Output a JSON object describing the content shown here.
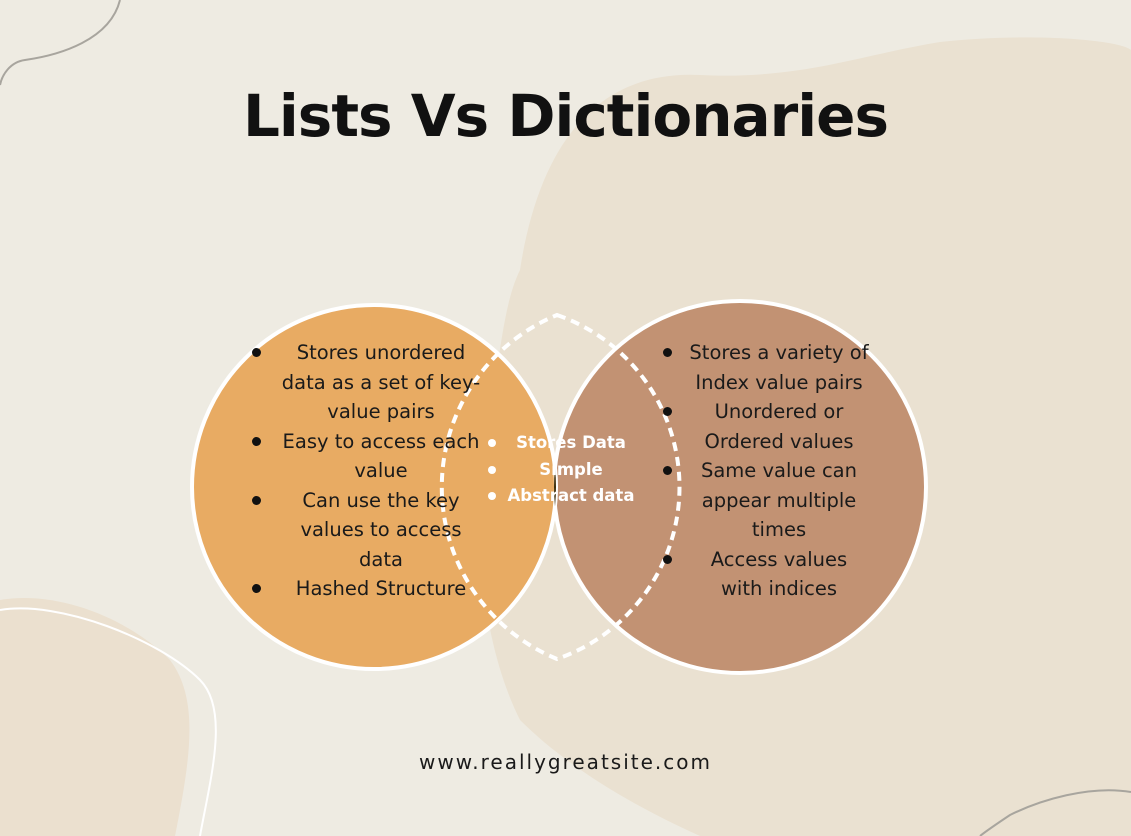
{
  "title": "Lists Vs Dictionaries",
  "colors": {
    "background": "#eeebe2",
    "blob": "#eae1d1",
    "left_circle": "#e8ab63",
    "right_circle": "#c29273",
    "intersection": "#40300c"
  },
  "left_items": [
    "Stores unordered data as a set of key-value pairs",
    "Easy to access each value",
    "Can use the key values to access data",
    "Hashed Structure"
  ],
  "center_items": [
    "Stores Data",
    "Simple",
    "Abstract data"
  ],
  "right_items": [
    "Stores a variety of Index value pairs",
    "Unordered or Ordered values",
    "Same value can appear multiple times",
    "Access values with indices"
  ],
  "website": "www.reallygreatsite.com"
}
